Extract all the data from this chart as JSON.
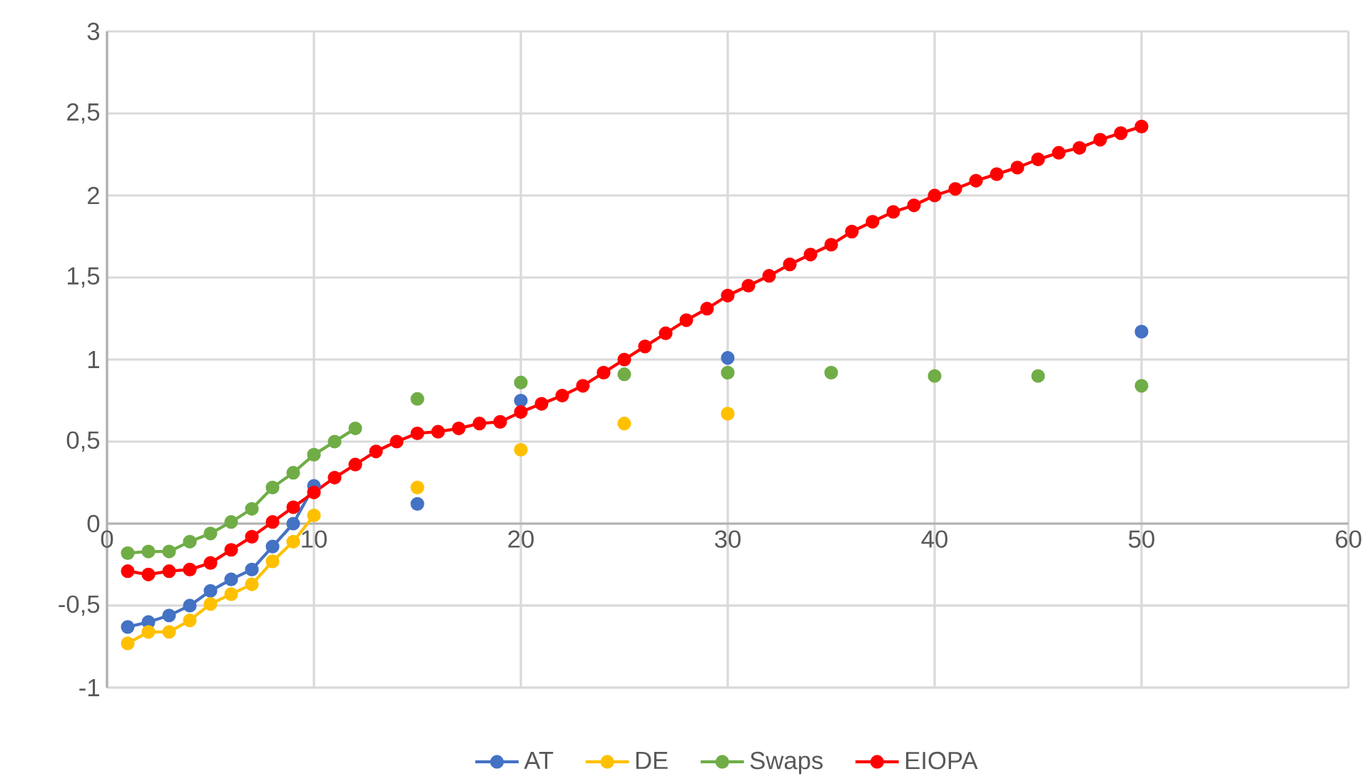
{
  "chart_data": {
    "type": "line",
    "x": [
      1,
      2,
      3,
      4,
      5,
      6,
      7,
      8,
      9,
      10,
      11,
      12,
      13,
      14,
      15,
      16,
      17,
      18,
      19,
      20,
      21,
      22,
      23,
      24,
      25,
      26,
      27,
      28,
      29,
      30,
      31,
      32,
      33,
      34,
      35,
      36,
      37,
      38,
      39,
      40,
      41,
      42,
      43,
      44,
      45,
      46,
      47,
      48,
      49,
      50
    ],
    "series": [
      {
        "name": "AT",
        "color": "#4472c4",
        "values": [
          -0.63,
          -0.6,
          -0.56,
          -0.5,
          -0.41,
          -0.34,
          -0.28,
          -0.14,
          0.0,
          0.23,
          null,
          null,
          null,
          null,
          0.12,
          null,
          null,
          null,
          null,
          0.75,
          null,
          null,
          null,
          null,
          null,
          null,
          null,
          null,
          null,
          1.01,
          null,
          null,
          null,
          null,
          null,
          null,
          null,
          null,
          null,
          null,
          null,
          null,
          null,
          null,
          null,
          null,
          null,
          null,
          null,
          1.17
        ]
      },
      {
        "name": "DE",
        "color": "#ffc000",
        "values": [
          -0.73,
          -0.66,
          -0.66,
          -0.59,
          -0.49,
          -0.43,
          -0.37,
          -0.23,
          -0.11,
          0.05,
          null,
          null,
          null,
          null,
          0.22,
          null,
          null,
          null,
          null,
          0.45,
          null,
          null,
          null,
          null,
          0.61,
          null,
          null,
          null,
          null,
          0.67,
          null,
          null,
          null,
          null,
          null,
          null,
          null,
          null,
          null,
          null,
          null,
          null,
          null,
          null,
          null,
          null,
          null,
          null,
          null,
          null
        ]
      },
      {
        "name": "Swaps",
        "color": "#70ad47",
        "values": [
          -0.18,
          -0.17,
          -0.17,
          -0.11,
          -0.06,
          0.01,
          0.09,
          0.22,
          0.31,
          0.42,
          0.5,
          0.58,
          null,
          null,
          0.76,
          null,
          null,
          null,
          null,
          0.86,
          null,
          null,
          null,
          null,
          0.91,
          null,
          null,
          null,
          null,
          0.92,
          null,
          null,
          null,
          null,
          0.92,
          null,
          null,
          null,
          null,
          0.9,
          null,
          null,
          null,
          null,
          0.9,
          null,
          null,
          null,
          null,
          0.84
        ]
      },
      {
        "name": "EIOPA",
        "color": "#ff0000",
        "values": [
          -0.29,
          -0.31,
          -0.29,
          -0.28,
          -0.24,
          -0.16,
          -0.08,
          0.01,
          0.1,
          0.19,
          0.28,
          0.36,
          0.44,
          0.5,
          0.55,
          0.56,
          0.58,
          0.61,
          0.62,
          0.68,
          0.73,
          0.78,
          0.84,
          0.92,
          1.0,
          1.08,
          1.16,
          1.24,
          1.31,
          1.39,
          1.45,
          1.51,
          1.58,
          1.64,
          1.7,
          1.78,
          1.84,
          1.9,
          1.94,
          2.0,
          2.04,
          2.09,
          2.13,
          2.17,
          2.22,
          2.26,
          2.29,
          2.34,
          2.38,
          2.42
        ]
      }
    ],
    "xlim": [
      0,
      60
    ],
    "xticks": [
      {
        "value": 0,
        "label": "0"
      },
      {
        "value": 10,
        "label": "10"
      },
      {
        "value": 20,
        "label": "20"
      },
      {
        "value": 30,
        "label": "30"
      },
      {
        "value": 40,
        "label": "40"
      },
      {
        "value": 50,
        "label": "50"
      },
      {
        "value": 60,
        "label": "60"
      }
    ],
    "ylim": [
      -1,
      3
    ],
    "yticks": [
      {
        "value": -1,
        "label": "-1"
      },
      {
        "value": -0.5,
        "label": "-0,5"
      },
      {
        "value": 0,
        "label": "0"
      },
      {
        "value": 0.5,
        "label": "0,5"
      },
      {
        "value": 1,
        "label": "1"
      },
      {
        "value": 1.5,
        "label": "1,5"
      },
      {
        "value": 2,
        "label": "2"
      },
      {
        "value": 2.5,
        "label": "2,5"
      },
      {
        "value": 3,
        "label": "3"
      }
    ],
    "grid": true,
    "legend": "bottom",
    "marker": "circle",
    "line_style": "solid"
  }
}
